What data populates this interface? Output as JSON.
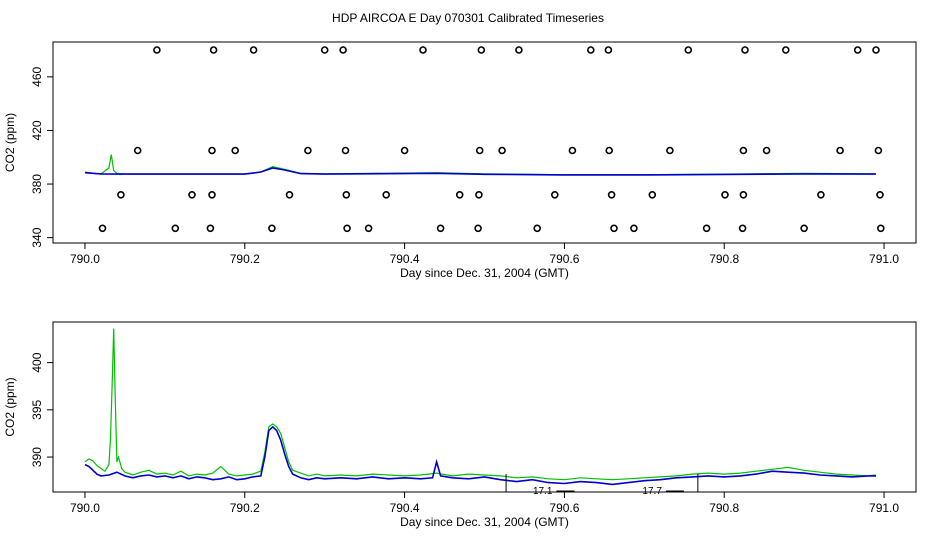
{
  "title": "HDP AIRCOA E  Day 070301  Calibrated Timeseries",
  "colors": {
    "green": "#00c000",
    "blue": "#0000cc",
    "axis": "#000000"
  },
  "chart_data": [
    {
      "type": "scatter+line",
      "xlabel": "Day since Dec. 31, 2004 (GMT)",
      "ylabel": "CO2 (ppm)",
      "xlim": [
        789.96,
        791.04
      ],
      "ylim": [
        336,
        486
      ],
      "xticks": [
        790.0,
        790.2,
        790.4,
        790.6,
        790.8,
        791.0
      ],
      "xtick_labels": [
        "790.0",
        "790.2",
        "790.4",
        "790.6",
        "790.8",
        "791.0"
      ],
      "yticks": [
        340,
        380,
        420,
        460
      ],
      "ytick_labels": [
        "340",
        "380",
        "420",
        "460"
      ],
      "grid": false,
      "points": [
        [
          790.09,
          480
        ],
        [
          790.161,
          480
        ],
        [
          790.211,
          480
        ],
        [
          790.3,
          480
        ],
        [
          790.323,
          480
        ],
        [
          790.423,
          480
        ],
        [
          790.496,
          480
        ],
        [
          790.543,
          480
        ],
        [
          790.633,
          480
        ],
        [
          790.655,
          480
        ],
        [
          790.755,
          480
        ],
        [
          790.826,
          480
        ],
        [
          790.877,
          480
        ],
        [
          790.967,
          480
        ],
        [
          790.99,
          480
        ],
        [
          790.066,
          405
        ],
        [
          790.159,
          405
        ],
        [
          790.188,
          405
        ],
        [
          790.279,
          405
        ],
        [
          790.326,
          405
        ],
        [
          790.4,
          405
        ],
        [
          790.494,
          405
        ],
        [
          790.522,
          405
        ],
        [
          790.61,
          405
        ],
        [
          790.656,
          405
        ],
        [
          790.732,
          405
        ],
        [
          790.824,
          405
        ],
        [
          790.853,
          405
        ],
        [
          790.945,
          405
        ],
        [
          790.993,
          405
        ],
        [
          790.045,
          372
        ],
        [
          790.134,
          372
        ],
        [
          790.159,
          372
        ],
        [
          790.256,
          372
        ],
        [
          790.327,
          372
        ],
        [
          790.377,
          372
        ],
        [
          790.469,
          372
        ],
        [
          790.493,
          372
        ],
        [
          790.588,
          372
        ],
        [
          790.659,
          372
        ],
        [
          790.71,
          372
        ],
        [
          790.801,
          372
        ],
        [
          790.824,
          372
        ],
        [
          790.921,
          372
        ],
        [
          790.995,
          372
        ],
        [
          790.022,
          347
        ],
        [
          790.113,
          347
        ],
        [
          790.157,
          347
        ],
        [
          790.234,
          347
        ],
        [
          790.328,
          347
        ],
        [
          790.355,
          347
        ],
        [
          790.445,
          347
        ],
        [
          790.492,
          347
        ],
        [
          790.566,
          347
        ],
        [
          790.662,
          347
        ],
        [
          790.687,
          347
        ],
        [
          790.778,
          347
        ],
        [
          790.823,
          347
        ],
        [
          790.9,
          347
        ],
        [
          790.996,
          347
        ]
      ],
      "series": [
        {
          "color": "green",
          "x": [
            790.0,
            790.01,
            790.02,
            790.03,
            790.033,
            790.036,
            790.04,
            790.05,
            790.1,
            790.2,
            790.22,
            790.235,
            790.25,
            790.27,
            790.3,
            790.44,
            790.5,
            790.6,
            790.7,
            790.8,
            790.9,
            790.99
          ],
          "y": [
            389,
            388,
            387.5,
            392,
            402,
            390,
            388,
            387.5,
            387.5,
            387.5,
            389,
            393,
            391,
            388,
            387.6,
            388.5,
            387.6,
            387,
            387,
            387.4,
            388,
            387.6
          ]
        },
        {
          "color": "blue",
          "x": [
            790.0,
            790.02,
            790.04,
            790.1,
            790.2,
            790.22,
            790.235,
            790.25,
            790.27,
            790.3,
            790.44,
            790.5,
            790.6,
            790.7,
            790.8,
            790.9,
            790.99
          ],
          "y": [
            388.5,
            387.6,
            387.4,
            387.4,
            387.4,
            389,
            392,
            390.5,
            387.8,
            387.4,
            388,
            387.3,
            386.8,
            386.8,
            387.2,
            387.6,
            387.4
          ]
        }
      ]
    },
    {
      "type": "line",
      "xlabel": "Day since Dec. 31, 2004 (GMT)",
      "ylabel": "CO2 (ppm)",
      "xlim": [
        789.96,
        791.04
      ],
      "ylim": [
        386.3,
        404.3
      ],
      "xticks": [
        790.0,
        790.2,
        790.4,
        790.6,
        790.8,
        791.0
      ],
      "xtick_labels": [
        "790.0",
        "790.2",
        "790.4",
        "790.6",
        "790.8",
        "791.0"
      ],
      "yticks": [
        390,
        395,
        400
      ],
      "ytick_labels": [
        "390",
        "395",
        "400"
      ],
      "grid": false,
      "annotations": [
        {
          "text": "17.1",
          "x": 790.585,
          "y": 386.4
        },
        {
          "text": "17.7",
          "x": 790.722,
          "y": 386.4
        }
      ],
      "brackets": [
        {
          "x_from": 790.527,
          "x_to": 790.767,
          "y_top": 388.2
        }
      ],
      "series": [
        {
          "color": "green",
          "x": [
            790.0,
            790.005,
            790.01,
            790.015,
            790.02,
            790.025,
            790.03,
            790.032,
            790.034,
            790.036,
            790.038,
            790.04,
            790.042,
            790.046,
            790.05,
            790.06,
            790.07,
            790.08,
            790.09,
            790.1,
            790.11,
            790.12,
            790.13,
            790.14,
            790.15,
            790.16,
            790.17,
            790.175,
            790.18,
            790.19,
            790.2,
            790.21,
            790.22,
            790.225,
            790.23,
            790.235,
            790.24,
            790.245,
            790.25,
            790.255,
            790.26,
            790.27,
            790.28,
            790.29,
            790.3,
            790.32,
            790.34,
            790.36,
            790.38,
            790.4,
            790.42,
            790.44,
            790.46,
            790.48,
            790.5,
            790.52,
            790.54,
            790.56,
            790.58,
            790.6,
            790.62,
            790.64,
            790.66,
            790.68,
            790.7,
            790.72,
            790.74,
            790.76,
            790.78,
            790.8,
            790.82,
            790.84,
            790.86,
            790.88,
            790.9,
            790.92,
            790.94,
            790.96,
            790.98,
            790.99
          ],
          "y": [
            389.5,
            389.8,
            389.6,
            389.1,
            388.8,
            388.5,
            389.2,
            392.0,
            397.5,
            403.6,
            396.0,
            389.5,
            390.0,
            388.8,
            388.4,
            388.1,
            388.4,
            388.6,
            388.2,
            388.3,
            388.1,
            388.5,
            388.0,
            388.2,
            388.1,
            388.3,
            389.0,
            388.6,
            388.2,
            388.0,
            388.1,
            388.2,
            388.5,
            390.5,
            393.2,
            393.5,
            393.2,
            392.5,
            391.0,
            389.5,
            388.6,
            388.3,
            388.0,
            388.2,
            388.0,
            388.1,
            388.0,
            388.2,
            388.1,
            388.0,
            388.1,
            388.3,
            388.0,
            388.2,
            388.1,
            388.0,
            387.8,
            387.9,
            387.7,
            387.6,
            387.8,
            387.7,
            387.6,
            387.7,
            387.8,
            387.9,
            388.0,
            388.2,
            388.3,
            388.2,
            388.3,
            388.5,
            388.7,
            388.9,
            388.6,
            388.4,
            388.2,
            388.1,
            388.0,
            388.1
          ]
        },
        {
          "color": "blue",
          "x": [
            790.0,
            790.005,
            790.01,
            790.015,
            790.02,
            790.03,
            790.04,
            790.05,
            790.06,
            790.07,
            790.08,
            790.09,
            790.1,
            790.11,
            790.12,
            790.13,
            790.14,
            790.15,
            790.16,
            790.17,
            790.18,
            790.19,
            790.2,
            790.21,
            790.22,
            790.225,
            790.23,
            790.235,
            790.24,
            790.245,
            790.25,
            790.255,
            790.26,
            790.27,
            790.28,
            790.29,
            790.3,
            790.32,
            790.34,
            790.36,
            790.38,
            790.4,
            790.42,
            790.435,
            790.44,
            790.445,
            790.46,
            790.48,
            790.5,
            790.52,
            790.54,
            790.56,
            790.58,
            790.6,
            790.62,
            790.64,
            790.66,
            790.68,
            790.7,
            790.72,
            790.74,
            790.76,
            790.78,
            790.8,
            790.82,
            790.84,
            790.86,
            790.88,
            790.9,
            790.92,
            790.94,
            790.96,
            790.98,
            790.99
          ],
          "y": [
            389.2,
            389.0,
            388.6,
            388.2,
            388.0,
            388.1,
            388.4,
            388.0,
            387.8,
            388.0,
            388.1,
            387.9,
            388.0,
            387.8,
            388.0,
            387.7,
            387.9,
            387.8,
            387.6,
            387.7,
            387.9,
            387.6,
            387.7,
            387.9,
            388.0,
            390.0,
            392.8,
            393.2,
            392.8,
            391.8,
            390.3,
            389.0,
            388.2,
            387.8,
            387.6,
            387.8,
            387.7,
            387.8,
            387.7,
            387.9,
            387.7,
            387.8,
            387.7,
            387.8,
            389.5,
            388.0,
            387.8,
            387.7,
            387.9,
            387.6,
            387.4,
            387.6,
            387.3,
            387.2,
            387.4,
            387.3,
            387.1,
            387.3,
            387.5,
            387.6,
            387.8,
            387.9,
            388.0,
            387.9,
            388.0,
            388.2,
            388.5,
            388.4,
            388.3,
            388.1,
            388.0,
            387.9,
            388.0,
            388.0
          ]
        }
      ]
    }
  ]
}
